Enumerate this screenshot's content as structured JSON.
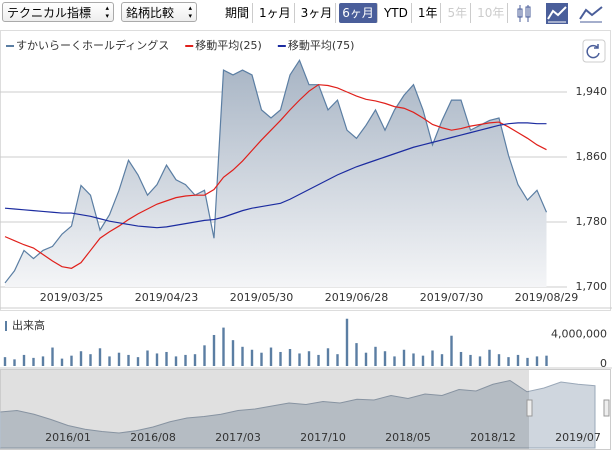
{
  "toolbar": {
    "indicator_select": "テクニカル指標",
    "compare_select": "銘柄比較",
    "period_label": "期間",
    "periods": [
      "1ヶ月",
      "3ヶ月",
      "6ヶ月",
      "YTD",
      "1年",
      "5年",
      "10年"
    ],
    "selected_period": 2,
    "disabled_periods": [
      5,
      6
    ]
  },
  "chart_data": [
    {
      "type": "line",
      "categories": [
        null,
        null,
        null,
        null,
        null,
        null,
        null,
        "2019/03/25",
        null,
        null,
        null,
        null,
        null,
        null,
        null,
        null,
        null,
        "2019/04/23",
        null,
        null,
        null,
        null,
        null,
        null,
        null,
        null,
        null,
        "2019/05/30",
        null,
        null,
        null,
        null,
        null,
        null,
        null,
        null,
        null,
        "2019/06/28",
        null,
        null,
        null,
        null,
        null,
        null,
        null,
        null,
        null,
        "2019/07/30",
        null,
        null,
        null,
        null,
        null,
        null,
        null,
        null,
        null,
        "2019/08/29"
      ],
      "series": [
        {
          "name": "すかいらーくホールディングス",
          "color": "#5b7ea3",
          "area": true,
          "values": [
            1705,
            1720,
            1745,
            1735,
            1745,
            1750,
            1765,
            1775,
            1825,
            1813,
            1770,
            1789,
            1819,
            1856,
            1838,
            1813,
            1826,
            1850,
            1832,
            1826,
            1813,
            1819,
            1760,
            1967,
            1961,
            1967,
            1961,
            1918,
            1908,
            1918,
            1961,
            1979,
            1949,
            1949,
            1918,
            1930,
            1893,
            1883,
            1899,
            1918,
            1893,
            1918,
            1936,
            1949,
            1918,
            1875,
            1905,
            1930,
            1930,
            1893,
            1899,
            1905,
            1908,
            1862,
            1826,
            1807,
            1819,
            1792
          ]
        },
        {
          "name": "移動平均(25)",
          "color": "#e0201b",
          "values": [
            1762,
            1757,
            1752,
            1748,
            1740,
            1732,
            1725,
            1723,
            1730,
            1745,
            1760,
            1768,
            1775,
            1783,
            1790,
            1796,
            1802,
            1806,
            1810,
            1812,
            1813,
            1813,
            1820,
            1835,
            1844,
            1855,
            1868,
            1881,
            1893,
            1905,
            1918,
            1930,
            1941,
            1949,
            1948,
            1945,
            1940,
            1935,
            1931,
            1929,
            1926,
            1922,
            1920,
            1915,
            1908,
            1900,
            1896,
            1893,
            1895,
            1898,
            1900,
            1902,
            1903,
            1897,
            1890,
            1883,
            1875,
            1869
          ]
        },
        {
          "name": "移動平均(75)",
          "color": "#1c2ca0",
          "values": [
            1797,
            1796,
            1795,
            1794,
            1793,
            1792,
            1791,
            1791,
            1789,
            1787,
            1784,
            1781,
            1779,
            1777,
            1775,
            1774,
            1773,
            1774,
            1776,
            1778,
            1780,
            1782,
            1783,
            1786,
            1790,
            1794,
            1797,
            1799,
            1801,
            1803,
            1808,
            1814,
            1820,
            1826,
            1832,
            1838,
            1843,
            1848,
            1852,
            1856,
            1860,
            1864,
            1868,
            1872,
            1875,
            1878,
            1881,
            1884,
            1887,
            1890,
            1893,
            1896,
            1899,
            1901,
            1902,
            1902,
            1901,
            1901
          ]
        }
      ],
      "ylim": [
        1700,
        2000
      ],
      "yticks": [
        {
          "value": 1700,
          "label": "1,700"
        },
        {
          "value": 1780,
          "label": "1,780"
        },
        {
          "value": 1860,
          "label": "1,860"
        },
        {
          "value": 1940,
          "label": "1,940"
        }
      ],
      "grid": true
    },
    {
      "type": "bar",
      "title": "出来高",
      "color": "#5b7ea3",
      "values": [
        1200000,
        900000,
        1500000,
        1100000,
        1300000,
        2500000,
        1000000,
        1400000,
        2000000,
        1600000,
        2400000,
        1300000,
        1800000,
        1500000,
        1200000,
        2100000,
        1700000,
        1900000,
        1300000,
        1500000,
        1600000,
        2800000,
        4200000,
        5200000,
        3500000,
        2600000,
        2200000,
        1800000,
        2500000,
        1900000,
        2300000,
        1700000,
        2000000,
        1500000,
        2400000,
        1600000,
        6400000,
        3100000,
        1800000,
        2600000,
        2000000,
        1300000,
        2200000,
        1700000,
        1400000,
        2100000,
        1600000,
        4100000,
        1900000,
        1500000,
        1300000,
        2200000,
        1600000,
        1200000,
        1500000,
        1100000,
        1300000,
        1400000
      ],
      "ylim": [
        0,
        6500000
      ],
      "yticks": [
        {
          "value": 4000000,
          "label": "4,000,000"
        },
        0
      ]
    },
    {
      "type": "area",
      "color": "#9aa8b8",
      "categories": [
        null,
        null,
        null,
        null,
        "2016/01",
        null,
        null,
        null,
        null,
        "2016/08",
        null,
        null,
        null,
        null,
        "2017/03",
        null,
        null,
        null,
        null,
        "2017/10",
        null,
        null,
        null,
        null,
        "2018/05",
        null,
        null,
        null,
        null,
        "2018/12",
        null,
        null,
        null,
        null,
        "2019/07",
        null
      ],
      "values": [
        1480,
        1500,
        1450,
        1380,
        1300,
        1250,
        1220,
        1200,
        1230,
        1280,
        1350,
        1400,
        1420,
        1450,
        1500,
        1520,
        1560,
        1600,
        1580,
        1620,
        1600,
        1650,
        1640,
        1700,
        1660,
        1720,
        1700,
        1780,
        1760,
        1850,
        1900,
        1750,
        1800,
        1880,
        1850,
        1830
      ],
      "ylim": [
        1000,
        2000
      ]
    }
  ]
}
